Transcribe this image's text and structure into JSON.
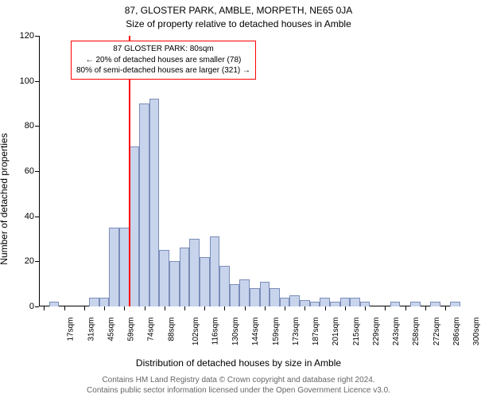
{
  "title_main": "87, GLOSTER PARK, AMBLE, MORPETH, NE65 0JA",
  "title_sub": "Size of property relative to detached houses in Amble",
  "ylabel": "Number of detached properties",
  "xlabel": "Distribution of detached houses by size in Amble",
  "footer_line1": "Contains HM Land Registry data © Crown copyright and database right 2024.",
  "footer_line2": "Contains public sector information licensed under the Open Government Licence v3.0.",
  "chart": {
    "type": "histogram",
    "background_color": "#ffffff",
    "axis_color": "#000000",
    "ylim": [
      0,
      120
    ],
    "ytick_step": 20,
    "yticks": [
      0,
      20,
      40,
      60,
      80,
      100,
      120
    ],
    "x_tick_labels": [
      "17sqm",
      "31sqm",
      "45sqm",
      "59sqm",
      "74sqm",
      "88sqm",
      "102sqm",
      "116sqm",
      "130sqm",
      "144sqm",
      "159sqm",
      "173sqm",
      "187sqm",
      "201sqm",
      "215sqm",
      "229sqm",
      "243sqm",
      "258sqm",
      "272sqm",
      "286sqm",
      "300sqm"
    ],
    "bars": [
      {
        "h": 0
      },
      {
        "h": 2
      },
      {
        "h": 0
      },
      {
        "h": 0
      },
      {
        "h": 0
      },
      {
        "h": 4
      },
      {
        "h": 4
      },
      {
        "h": 35
      },
      {
        "h": 35
      },
      {
        "h": 71
      },
      {
        "h": 90
      },
      {
        "h": 92
      },
      {
        "h": 25
      },
      {
        "h": 20
      },
      {
        "h": 26
      },
      {
        "h": 30
      },
      {
        "h": 22
      },
      {
        "h": 31
      },
      {
        "h": 18
      },
      {
        "h": 10
      },
      {
        "h": 12
      },
      {
        "h": 8
      },
      {
        "h": 11
      },
      {
        "h": 8
      },
      {
        "h": 4
      },
      {
        "h": 5
      },
      {
        "h": 3
      },
      {
        "h": 2
      },
      {
        "h": 4
      },
      {
        "h": 2
      },
      {
        "h": 4
      },
      {
        "h": 4
      },
      {
        "h": 2
      },
      {
        "h": 0
      },
      {
        "h": 0
      },
      {
        "h": 2
      },
      {
        "h": 0
      },
      {
        "h": 2
      },
      {
        "h": 0
      },
      {
        "h": 2
      },
      {
        "h": 0
      },
      {
        "h": 2
      }
    ],
    "bar_fill": "#c8d4ec",
    "bar_stroke": "#7a8db8",
    "bar_width_ratio": 1.0,
    "marker": {
      "index": 9,
      "color": "#ff0000",
      "width": 2
    },
    "annotation": {
      "line1": "87 GLOSTER PARK: 80sqm",
      "line2": "← 20% of detached houses are smaller (78)",
      "line3": "80% of semi-detached houses are larger (321) →",
      "border_color": "#ff0000",
      "text_color": "#000000",
      "bg_color": "#ffffff",
      "fontsize": 10
    }
  }
}
